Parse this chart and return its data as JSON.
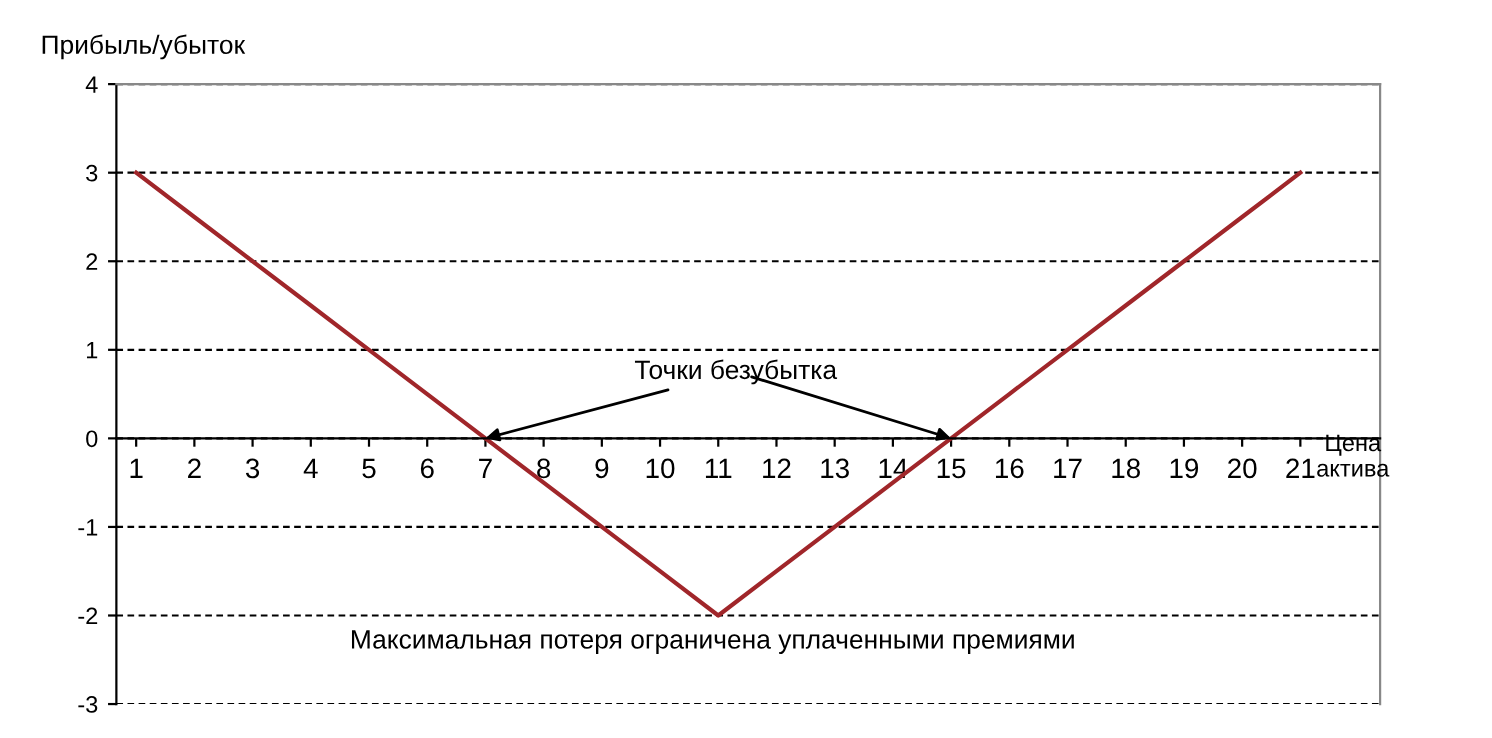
{
  "chart_data": {
    "type": "line",
    "ylabel": "Прибыль/убыток",
    "xlabel": "Цена\nактива",
    "categories": [
      "1",
      "2",
      "3",
      "4",
      "5",
      "6",
      "7",
      "8",
      "9",
      "10",
      "11",
      "12",
      "13",
      "14",
      "15",
      "16",
      "17",
      "18",
      "19",
      "20",
      "21"
    ],
    "series": [
      {
        "color": "#a0262a",
        "values": [
          3,
          2.5,
          2,
          1.5,
          1,
          0.5,
          0,
          -0.5,
          -1,
          -1.5,
          -2,
          -1.5,
          -1,
          -0.5,
          0,
          0.5,
          1,
          1.5,
          2,
          2.5,
          3
        ]
      }
    ],
    "ylim": [
      -3,
      4
    ],
    "yticks": [
      -3,
      -2,
      -1,
      0,
      1,
      2,
      3,
      4
    ],
    "grid": "y",
    "legend": false,
    "marker": "none",
    "line_style": "solid",
    "annotations": [
      {
        "text": "Точки безубытка",
        "x": "7",
        "y": 0
      },
      {
        "text": "Максимальная потеря ограничена уплаченными премиями",
        "x": "11",
        "y": -2
      }
    ]
  }
}
